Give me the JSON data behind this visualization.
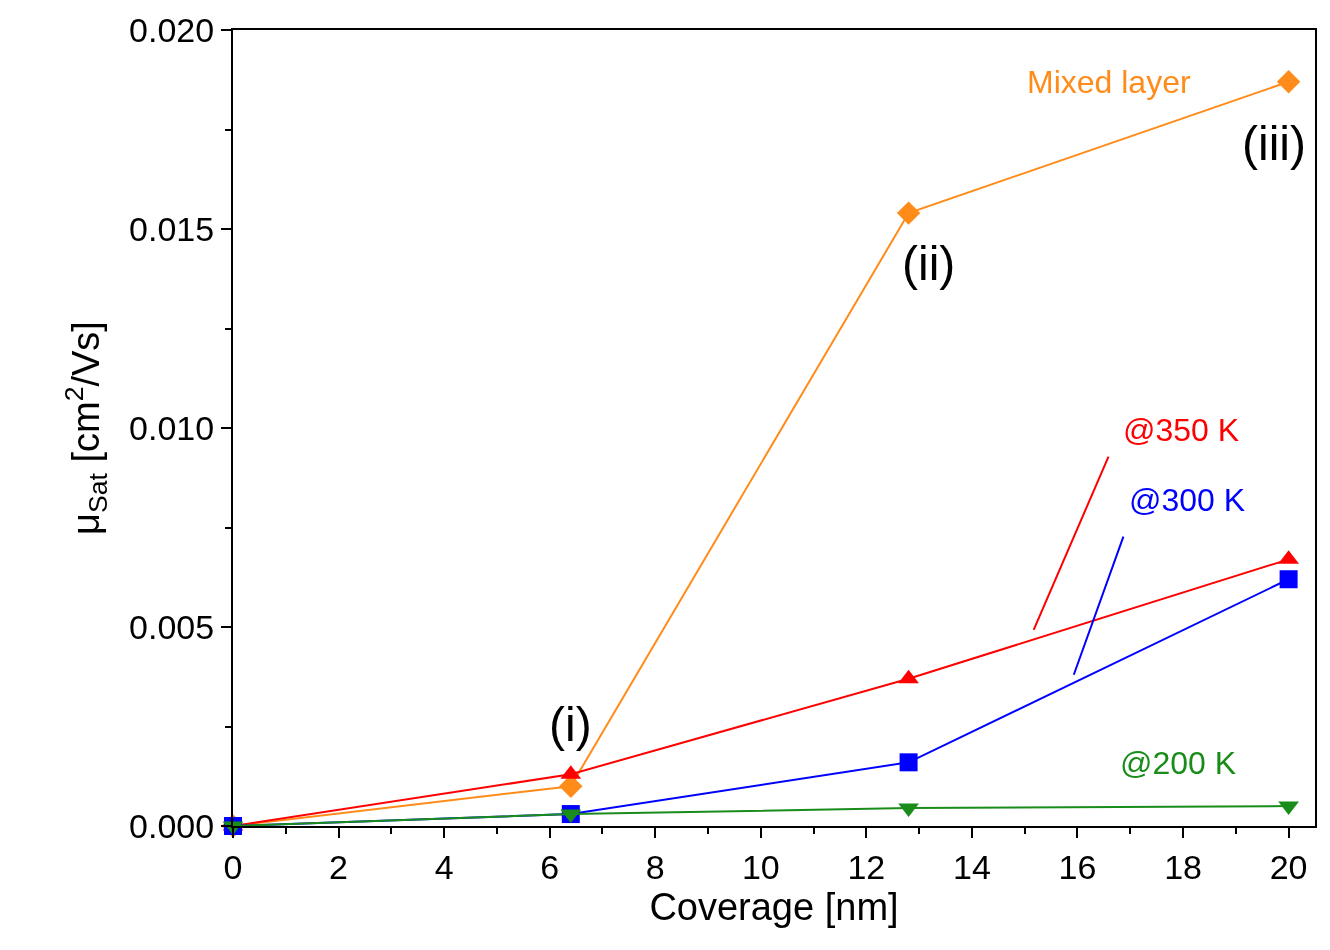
{
  "chart_data": {
    "type": "line",
    "xlabel": "Coverage [nm]",
    "ylabel": "μ$_{Sat}$ [cm$^{2}$/Vs]",
    "x": [
      0,
      6.4,
      12.8,
      20
    ],
    "series": [
      {
        "name": "Mixed layer",
        "color": "#ff8c1a",
        "marker": "diamond",
        "values": [
          0,
          0.001,
          0.0154,
          0.0187
        ]
      },
      {
        "name": "@350 K",
        "color": "#ff0000",
        "marker": "triangle",
        "values": [
          0,
          0.0013,
          0.0037,
          0.0067
        ]
      },
      {
        "name": "@300 K",
        "color": "#0000ff",
        "marker": "square",
        "values": [
          0,
          0.0003,
          0.0016,
          0.0062
        ]
      },
      {
        "name": "@200 K",
        "color": "#1a8c1a",
        "marker": "triangle-down",
        "values": [
          0,
          0.0003,
          0.00045,
          0.0005
        ]
      }
    ],
    "xlim": [
      0,
      20.5
    ],
    "xticks": [
      0,
      2,
      4,
      6,
      8,
      10,
      12,
      14,
      16,
      18,
      20
    ],
    "ylim": [
      0,
      0.02
    ],
    "yticks": [
      {
        "value": 0,
        "label": "0.000"
      },
      0.005,
      {
        "value": 0.01,
        "label": "0.010"
      },
      0.015,
      {
        "value": 0.02,
        "label": "0.020"
      }
    ],
    "grid": false,
    "legend": false,
    "annotations": [
      {
        "text": "(i)",
        "x": 6.4,
        "y": 0.001
      },
      {
        "text": "(ii)",
        "x": 12.8,
        "y": 0.0154
      },
      {
        "text": "(iii)",
        "x": 20,
        "y": 0.0187
      }
    ]
  }
}
